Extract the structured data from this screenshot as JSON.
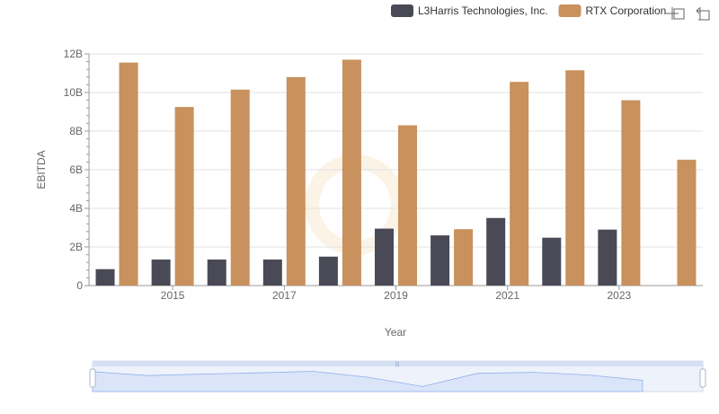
{
  "colors": {
    "l3harris": "#4a4a56",
    "rtx": "#c8915d",
    "watermark": "#f3dcb8"
  },
  "toolbar": {
    "icons": [
      "zoom-icon",
      "zoom-reset-icon"
    ]
  },
  "chart_data": {
    "type": "bar",
    "xlabel": "Year",
    "ylabel": "EBITDA",
    "ylim": [
      0,
      12000000000
    ],
    "y_ticks": [
      {
        "value": 0,
        "label": "0"
      },
      {
        "value": 2000000000,
        "label": "2B"
      },
      {
        "value": 4000000000,
        "label": "4B"
      },
      {
        "value": 6000000000,
        "label": "6B"
      },
      {
        "value": 8000000000,
        "label": "8B"
      },
      {
        "value": 10000000000,
        "label": "10B"
      },
      {
        "value": 12000000000,
        "label": "12B"
      }
    ],
    "categories": [
      "2014",
      "2015",
      "2016",
      "2017",
      "2018",
      "2019",
      "2020",
      "2021",
      "2022",
      "2023",
      "2024"
    ],
    "x_tick_labels": [
      "2015",
      "2017",
      "2019",
      "2021",
      "2023"
    ],
    "series": [
      {
        "name": "L3Harris Technologies, Inc.",
        "color_key": "l3harris",
        "values": [
          850000000,
          1350000000,
          1350000000,
          1350000000,
          1500000000,
          2950000000,
          2600000000,
          3500000000,
          2480000000,
          2900000000,
          null
        ]
      },
      {
        "name": "RTX Corporation",
        "color_key": "rtx",
        "values": [
          11550000000,
          9250000000,
          10150000000,
          10800000000,
          11700000000,
          8300000000,
          2920000000,
          10550000000,
          11150000000,
          9600000000,
          6520000000
        ]
      }
    ],
    "grid": true,
    "legend_position": "top-right",
    "zoom_slider": true
  }
}
